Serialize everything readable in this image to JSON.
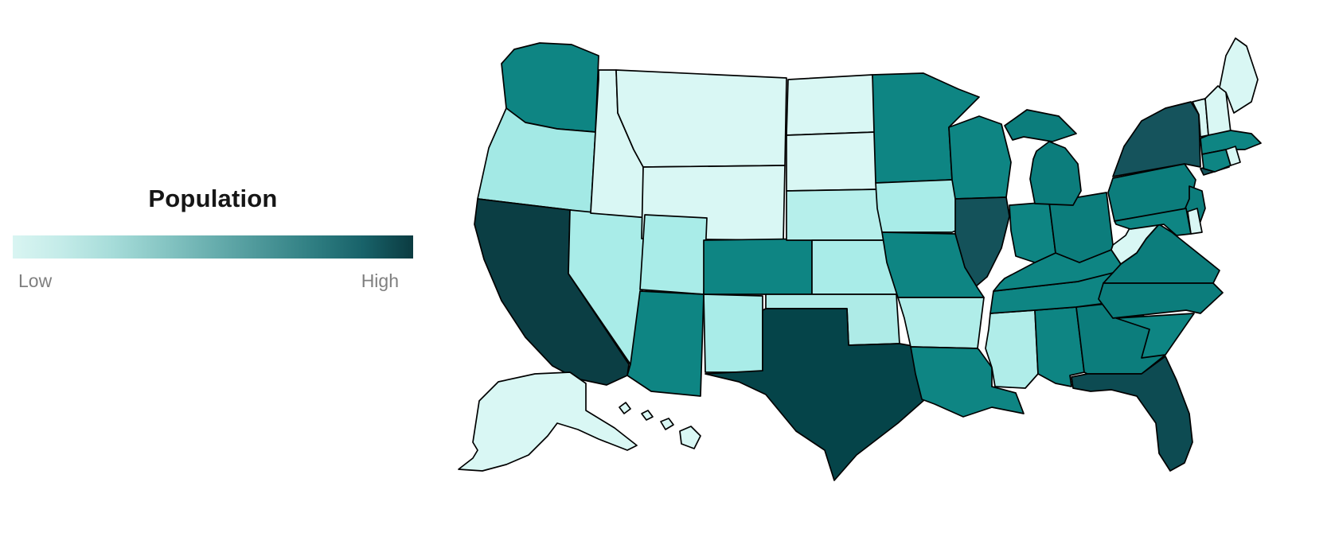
{
  "legend": {
    "title": "Population",
    "low_label": "Low",
    "high_label": "High",
    "colorscale": [
      "#d9f5f2",
      "#c3ebe8",
      "#a6dcd9",
      "#87c6c4",
      "#68aeae",
      "#4b9698",
      "#2f7e82",
      "#186269",
      "#0b3b41"
    ]
  },
  "map": {
    "region": "United States",
    "projection": "albers-usa",
    "border_color": "#000000",
    "background": "#ffffff"
  },
  "chart_data": {
    "type": "heatmap",
    "subtype": "choropleth-usa-states",
    "title": "Population",
    "value_axis": {
      "min_label": "Low",
      "max_label": "High"
    },
    "legend_position": "left",
    "series": [
      {
        "state": "Alabama",
        "abbr": "AL",
        "level": 0.58,
        "color": "#0e8583"
      },
      {
        "state": "Alaska",
        "abbr": "AK",
        "level": 0.04,
        "color": "#d9f7f4"
      },
      {
        "state": "Arizona",
        "abbr": "AZ",
        "level": 0.6,
        "color": "#0e8583"
      },
      {
        "state": "Arkansas",
        "abbr": "AR",
        "level": 0.24,
        "color": "#b0ede9"
      },
      {
        "state": "California",
        "abbr": "CA",
        "level": 1.0,
        "color": "#0b3e44"
      },
      {
        "state": "Colorado",
        "abbr": "CO",
        "level": 0.6,
        "color": "#0e8583"
      },
      {
        "state": "Connecticut",
        "abbr": "CT",
        "level": 0.58,
        "color": "#0e8583"
      },
      {
        "state": "Delaware",
        "abbr": "DE",
        "level": 0.05,
        "color": "#d9f7f4"
      },
      {
        "state": "Florida",
        "abbr": "FL",
        "level": 0.9,
        "color": "#0d4b52"
      },
      {
        "state": "Georgia",
        "abbr": "GA",
        "level": 0.66,
        "color": "#0c7d7c"
      },
      {
        "state": "Hawaii",
        "abbr": "HI",
        "level": 0.04,
        "color": "#d9f7f4"
      },
      {
        "state": "Idaho",
        "abbr": "ID",
        "level": 0.05,
        "color": "#d9f7f4"
      },
      {
        "state": "Illinois",
        "abbr": "IL",
        "level": 0.84,
        "color": "#14525a"
      },
      {
        "state": "Indiana",
        "abbr": "IN",
        "level": 0.6,
        "color": "#0e8583"
      },
      {
        "state": "Iowa",
        "abbr": "IA",
        "level": 0.24,
        "color": "#a9ece8"
      },
      {
        "state": "Kansas",
        "abbr": "KS",
        "level": 0.24,
        "color": "#a9ece8"
      },
      {
        "state": "Kentucky",
        "abbr": "KY",
        "level": 0.58,
        "color": "#0e8583"
      },
      {
        "state": "Louisiana",
        "abbr": "LA",
        "level": 0.58,
        "color": "#0e8583"
      },
      {
        "state": "Maine",
        "abbr": "ME",
        "level": 0.06,
        "color": "#d9f7f4"
      },
      {
        "state": "Maryland",
        "abbr": "MD",
        "level": 0.6,
        "color": "#0e8583"
      },
      {
        "state": "Massachusetts",
        "abbr": "MA",
        "level": 0.6,
        "color": "#0e8583"
      },
      {
        "state": "Michigan",
        "abbr": "MI",
        "level": 0.65,
        "color": "#0c7d7c"
      },
      {
        "state": "Minnesota",
        "abbr": "MN",
        "level": 0.6,
        "color": "#0e8583"
      },
      {
        "state": "Mississippi",
        "abbr": "MS",
        "level": 0.26,
        "color": "#b0ede9"
      },
      {
        "state": "Missouri",
        "abbr": "MO",
        "level": 0.6,
        "color": "#0e8583"
      },
      {
        "state": "Montana",
        "abbr": "MT",
        "level": 0.04,
        "color": "#d9f7f4"
      },
      {
        "state": "Nebraska",
        "abbr": "NE",
        "level": 0.2,
        "color": "#b6efeb"
      },
      {
        "state": "Nevada",
        "abbr": "NV",
        "level": 0.24,
        "color": "#a9ece8"
      },
      {
        "state": "New Hampshire",
        "abbr": "NH",
        "level": 0.06,
        "color": "#d9f7f4"
      },
      {
        "state": "New Jersey",
        "abbr": "NJ",
        "level": 0.65,
        "color": "#0c7d7c"
      },
      {
        "state": "New Mexico",
        "abbr": "NM",
        "level": 0.24,
        "color": "#a9ece8"
      },
      {
        "state": "New York",
        "abbr": "NY",
        "level": 0.85,
        "color": "#15535c"
      },
      {
        "state": "North Carolina",
        "abbr": "NC",
        "level": 0.66,
        "color": "#0c7d7c"
      },
      {
        "state": "North Dakota",
        "abbr": "ND",
        "level": 0.04,
        "color": "#d9f7f4"
      },
      {
        "state": "Ohio",
        "abbr": "OH",
        "level": 0.66,
        "color": "#0c7d7c"
      },
      {
        "state": "Oklahoma",
        "abbr": "OK",
        "level": 0.25,
        "color": "#aeebe7"
      },
      {
        "state": "Oregon",
        "abbr": "OR",
        "level": 0.26,
        "color": "#a3e9e5"
      },
      {
        "state": "Pennsylvania",
        "abbr": "PA",
        "level": 0.66,
        "color": "#0c7d7c"
      },
      {
        "state": "Rhode Island",
        "abbr": "RI",
        "level": 0.05,
        "color": "#d9f7f4"
      },
      {
        "state": "South Carolina",
        "abbr": "SC",
        "level": 0.58,
        "color": "#0e8583"
      },
      {
        "state": "South Dakota",
        "abbr": "SD",
        "level": 0.04,
        "color": "#d9f7f4"
      },
      {
        "state": "Tennessee",
        "abbr": "TN",
        "level": 0.6,
        "color": "#0e8583"
      },
      {
        "state": "Texas",
        "abbr": "TX",
        "level": 0.95,
        "color": "#054449"
      },
      {
        "state": "Utah",
        "abbr": "UT",
        "level": 0.24,
        "color": "#a9ece8"
      },
      {
        "state": "Vermont",
        "abbr": "VT",
        "level": 0.05,
        "color": "#d9f7f4"
      },
      {
        "state": "Virginia",
        "abbr": "VA",
        "level": 0.65,
        "color": "#0c7d7c"
      },
      {
        "state": "Washington",
        "abbr": "WA",
        "level": 0.62,
        "color": "#0e8583"
      },
      {
        "state": "West Virginia",
        "abbr": "WV",
        "level": 0.05,
        "color": "#d9f7f4"
      },
      {
        "state": "Wisconsin",
        "abbr": "WI",
        "level": 0.6,
        "color": "#0e8583"
      },
      {
        "state": "Wyoming",
        "abbr": "WY",
        "level": 0.03,
        "color": "#d9f7f4"
      }
    ]
  }
}
